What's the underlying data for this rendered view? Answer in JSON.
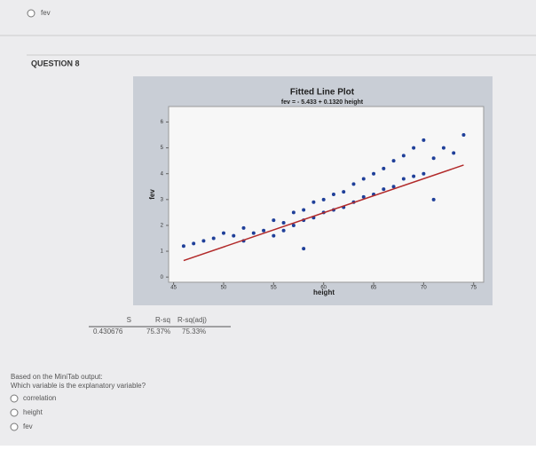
{
  "header": {
    "option": "fev"
  },
  "question": {
    "title": "QUESTION 8"
  },
  "chart_data": {
    "type": "scatter",
    "title": "Fitted Line Plot",
    "subtitle": "fev = - 5.433 + 0.1320 height",
    "x_label": "height",
    "y_label": "fev",
    "x": [
      46,
      47,
      48,
      49,
      50,
      51,
      52,
      52,
      53,
      54,
      55,
      55,
      56,
      56,
      57,
      57,
      58,
      58,
      59,
      59,
      60,
      60,
      61,
      61,
      62,
      62,
      63,
      63,
      64,
      64,
      65,
      65,
      66,
      66,
      67,
      67,
      68,
      68,
      69,
      69,
      70,
      70,
      71,
      72,
      73,
      74,
      58,
      71
    ],
    "values": [
      1.2,
      1.3,
      1.4,
      1.5,
      1.7,
      1.6,
      1.9,
      1.4,
      1.7,
      1.8,
      2.2,
      1.6,
      2.1,
      1.8,
      2.5,
      2.0,
      2.6,
      2.2,
      2.9,
      2.3,
      3.0,
      2.5,
      3.2,
      2.6,
      3.3,
      2.7,
      3.6,
      2.9,
      3.8,
      3.1,
      4.0,
      3.2,
      4.2,
      3.4,
      4.5,
      3.5,
      4.7,
      3.8,
      5.0,
      3.9,
      5.3,
      4.0,
      4.6,
      5.0,
      4.8,
      5.5,
      1.1,
      3.0
    ],
    "color": "#1f3f99",
    "fit": {
      "intercept": -5.433,
      "slope": 0.132,
      "color": "#b22a2a"
    },
    "xlim": [
      44.5,
      76
    ],
    "xticks": [
      45,
      50,
      55,
      60,
      65,
      70,
      75
    ],
    "ylim": [
      -0.2,
      6.6
    ],
    "yticks": [
      0,
      1,
      2,
      3,
      4,
      5,
      6
    ]
  },
  "summary": {
    "headers": [
      "S",
      "R-sq",
      "R-sq(adj)"
    ],
    "values": [
      "0.430676",
      "75.37%",
      "75.33%"
    ]
  },
  "prompt": [
    "Based on the MiniTab output:",
    "Which variable is the explanatory variable?"
  ],
  "options": [
    "correlation",
    "height",
    "fev"
  ]
}
